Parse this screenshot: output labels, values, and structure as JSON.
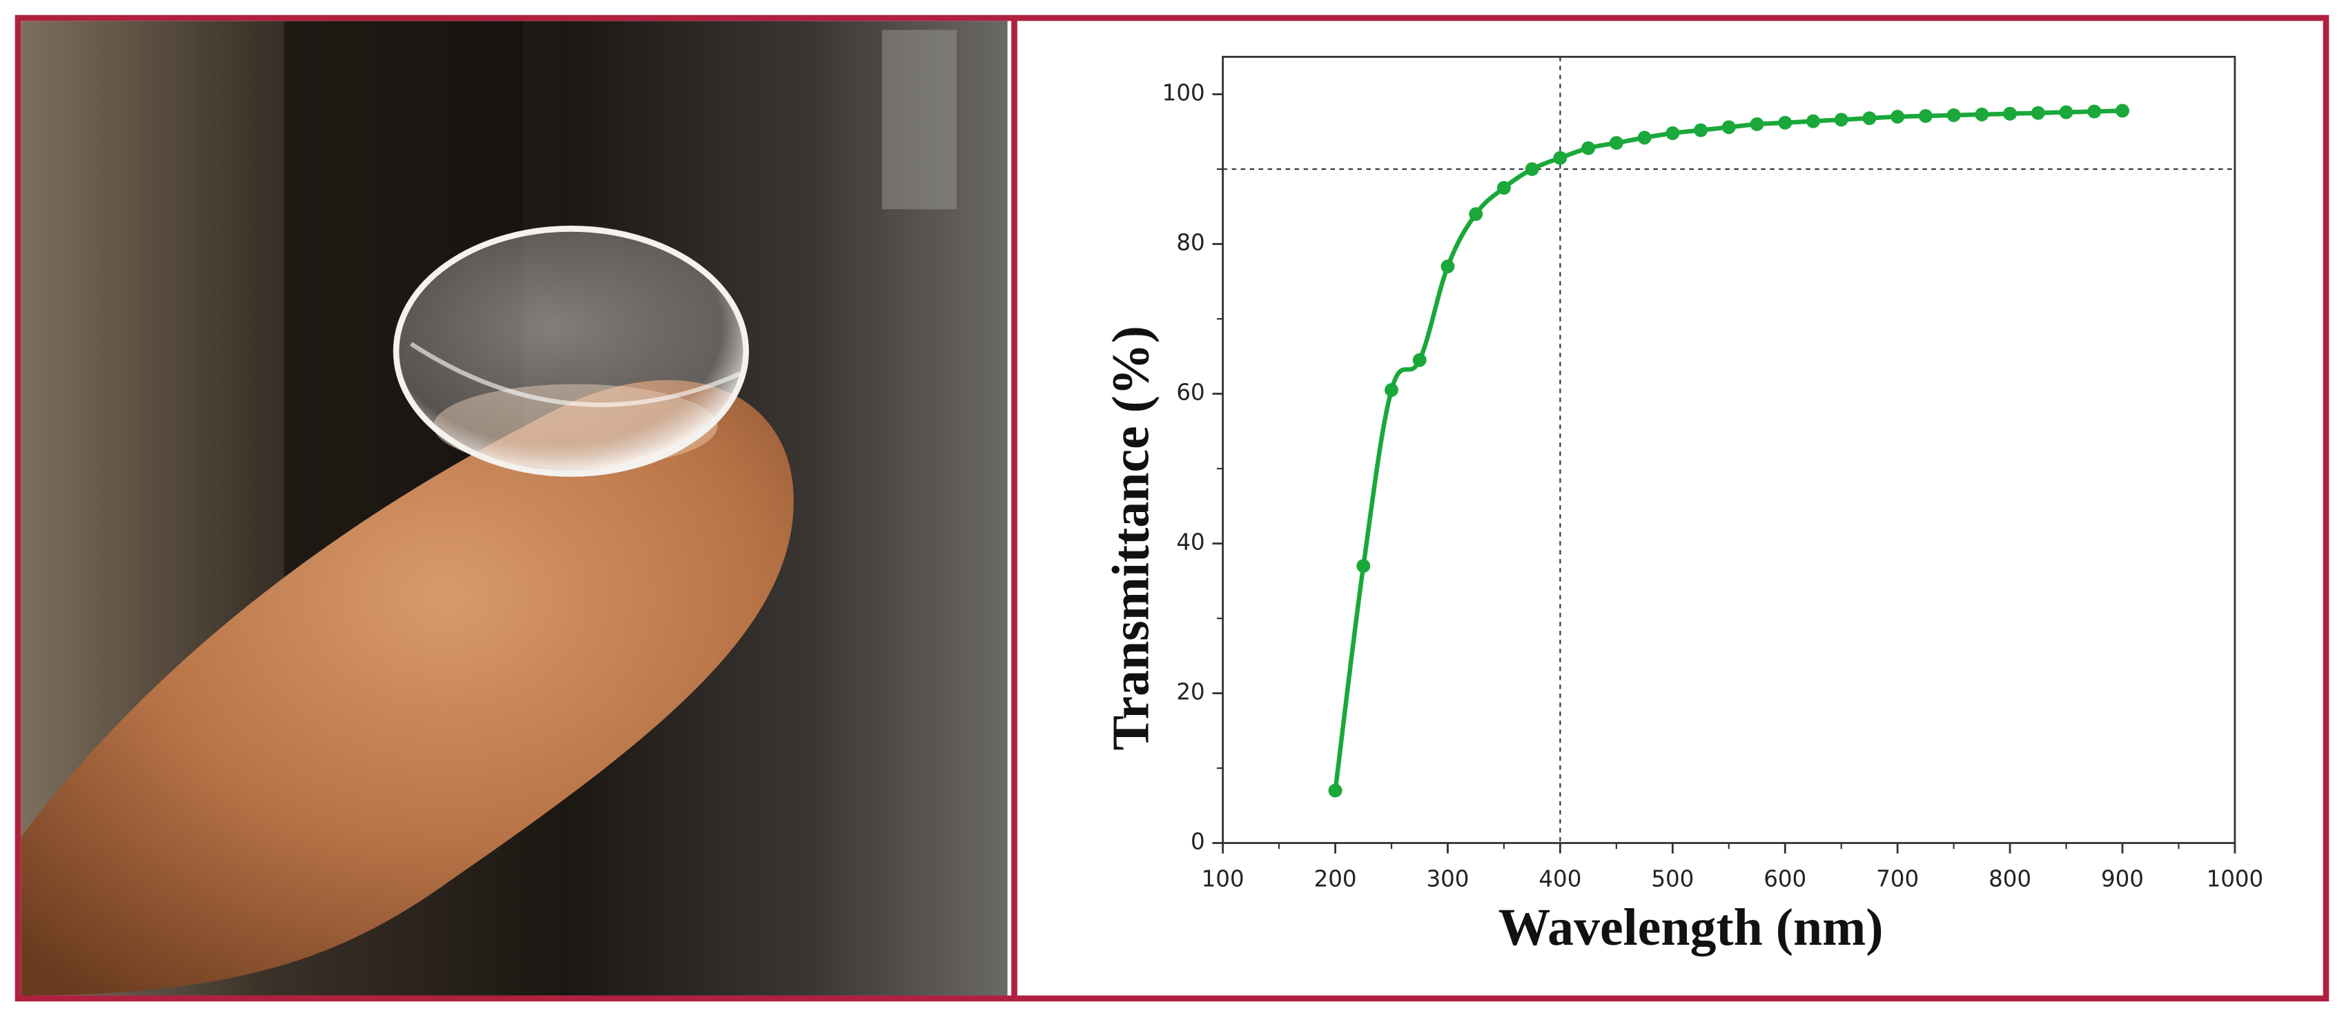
{
  "chart_data": {
    "type": "line",
    "xlabel": "Wavelength (nm)",
    "ylabel": "Transmittance (%)",
    "x": [
      200,
      225,
      250,
      275,
      300,
      325,
      350,
      375,
      400,
      425,
      450,
      475,
      500,
      525,
      550,
      575,
      600,
      625,
      650,
      675,
      700,
      725,
      750,
      775,
      800,
      825,
      850,
      875,
      900
    ],
    "series": [
      {
        "color": "#1aa83a",
        "values": [
          7,
          37,
          60.5,
          64.5,
          77,
          84,
          87.5,
          90,
          91.5,
          92.8,
          93.5,
          94.2,
          94.8,
          95.2,
          95.6,
          96,
          96.2,
          96.4,
          96.6,
          96.8,
          97,
          97.1,
          97.2,
          97.3,
          97.4,
          97.5,
          97.6,
          97.7,
          97.8
        ]
      }
    ],
    "xlim": [
      100,
      1000
    ],
    "xticks": [
      100,
      200,
      300,
      400,
      500,
      600,
      700,
      800,
      900,
      1000
    ],
    "ylim": [
      0,
      105
    ],
    "yticks": [
      0,
      20,
      40,
      60,
      80,
      100
    ],
    "vline": 400,
    "hline": 90
  }
}
